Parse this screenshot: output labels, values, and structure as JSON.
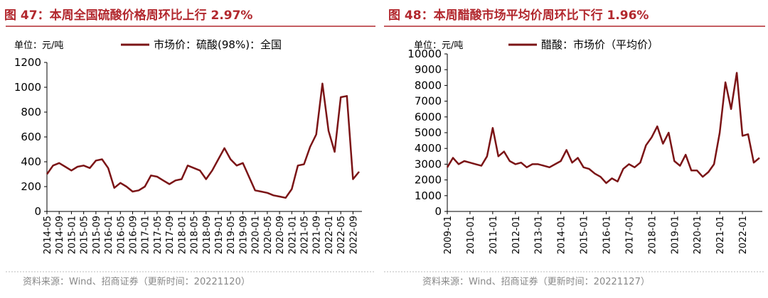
{
  "chart_data": [
    {
      "type": "line",
      "title": "图 47：本周全国硫酸价格周环比上行 2.97%",
      "unit_label": "单位：元/吨",
      "source": "资料来源：Wind、招商证券（更新时间：20221120）",
      "x": [
        "2014-05",
        "2014-07",
        "2014-09",
        "2014-11",
        "2015-01",
        "2015-03",
        "2015-05",
        "2015-07",
        "2015-09",
        "2015-11",
        "2016-01",
        "2016-03",
        "2016-05",
        "2016-07",
        "2016-09",
        "2016-11",
        "2017-01",
        "2017-03",
        "2017-05",
        "2017-07",
        "2017-09",
        "2017-11",
        "2018-01",
        "2018-03",
        "2018-05",
        "2018-07",
        "2018-09",
        "2018-11",
        "2019-01",
        "2019-03",
        "2019-05",
        "2019-07",
        "2019-09",
        "2019-11",
        "2020-01",
        "2020-03",
        "2020-05",
        "2020-07",
        "2020-09",
        "2020-11",
        "2021-01",
        "2021-03",
        "2021-05",
        "2021-07",
        "2021-09",
        "2021-11",
        "2022-01",
        "2022-03",
        "2022-05",
        "2022-07",
        "2022-09",
        "2022-11"
      ],
      "series": [
        {
          "name": "市场价：硫酸(98%)：全国",
          "color": "#7b1416",
          "values": [
            300,
            370,
            390,
            360,
            330,
            360,
            370,
            350,
            410,
            420,
            350,
            190,
            230,
            200,
            160,
            170,
            200,
            290,
            280,
            250,
            220,
            250,
            260,
            370,
            350,
            330,
            260,
            330,
            420,
            510,
            420,
            370,
            390,
            280,
            170,
            160,
            150,
            130,
            120,
            110,
            180,
            370,
            380,
            520,
            620,
            1030,
            650,
            480,
            920,
            930,
            260,
            320
          ]
        }
      ],
      "ylim": [
        0,
        1200
      ],
      "yticks": [
        0,
        200,
        400,
        600,
        800,
        1000,
        1200
      ],
      "xticks": [
        "2014-05",
        "2014-09",
        "2015-01",
        "2015-05",
        "2015-09",
        "2016-01",
        "2016-05",
        "2016-09",
        "2017-01",
        "2017-05",
        "2017-09",
        "2018-01",
        "2018-05",
        "2018-09",
        "2019-01",
        "2019-05",
        "2019-09",
        "2020-01",
        "2020-05",
        "2020-09",
        "2021-01",
        "2021-05",
        "2021-09",
        "2022-01",
        "2022-05",
        "2022-09"
      ]
    },
    {
      "type": "line",
      "title": "图 48：本周醋酸市场平均价周环比下行 1.96%",
      "unit_label": "单位：元/吨",
      "source": "资料来源：Wind、招商证券（更新时间：20221127）",
      "x": [
        "2009-01",
        "2009-04",
        "2009-07",
        "2009-10",
        "2010-01",
        "2010-04",
        "2010-07",
        "2010-10",
        "2011-01",
        "2011-04",
        "2011-07",
        "2011-10",
        "2012-01",
        "2012-04",
        "2012-07",
        "2012-10",
        "2013-01",
        "2013-04",
        "2013-07",
        "2013-10",
        "2014-01",
        "2014-04",
        "2014-07",
        "2014-10",
        "2015-01",
        "2015-04",
        "2015-07",
        "2015-10",
        "2016-01",
        "2016-04",
        "2016-07",
        "2016-10",
        "2017-01",
        "2017-04",
        "2017-07",
        "2017-10",
        "2018-01",
        "2018-04",
        "2018-07",
        "2018-10",
        "2019-01",
        "2019-04",
        "2019-07",
        "2019-10",
        "2020-01",
        "2020-04",
        "2020-07",
        "2020-10",
        "2021-01",
        "2021-04",
        "2021-07",
        "2021-10",
        "2022-01",
        "2022-04",
        "2022-07",
        "2022-10"
      ],
      "series": [
        {
          "name": "醋酸：市场价（平均价）",
          "color": "#7b1416",
          "values": [
            2800,
            3400,
            3000,
            3200,
            3100,
            3000,
            2900,
            3500,
            5300,
            3500,
            3800,
            3200,
            3000,
            3100,
            2800,
            3000,
            3000,
            2900,
            2800,
            3000,
            3200,
            3900,
            3100,
            3400,
            2800,
            2700,
            2400,
            2200,
            1800,
            2100,
            1900,
            2700,
            3000,
            2800,
            3100,
            4200,
            4700,
            5400,
            4300,
            5000,
            3200,
            2900,
            3600,
            2600,
            2600,
            2200,
            2500,
            3000,
            5000,
            8200,
            6500,
            8800,
            4800,
            4900,
            3100,
            3400
          ]
        }
      ],
      "ylim": [
        0,
        10000
      ],
      "yticks": [
        0,
        1000,
        2000,
        3000,
        4000,
        5000,
        6000,
        7000,
        8000,
        9000,
        10000
      ],
      "xticks": [
        "2009-01",
        "2010-01",
        "2011-01",
        "2012-01",
        "2013-01",
        "2014-01",
        "2015-01",
        "2016-01",
        "2017-01",
        "2018-01",
        "2019-01",
        "2020-01",
        "2021-01",
        "2022-01"
      ]
    }
  ]
}
